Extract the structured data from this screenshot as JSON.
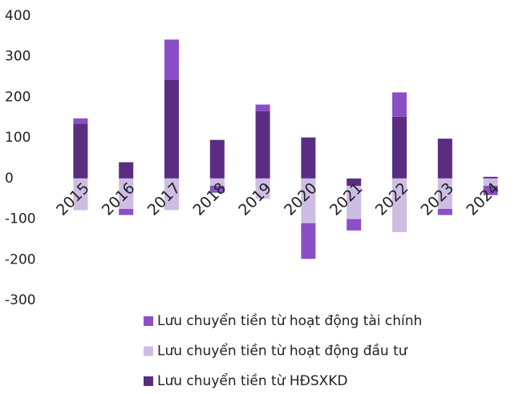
{
  "chart_data": {
    "type": "stacked_bar",
    "categories": [
      "2015",
      "2016",
      "2017",
      "2018",
      "2019",
      "2020",
      "2021",
      "2022",
      "2023",
      "2024"
    ],
    "series": [
      {
        "name": "Lưu chuyển tiền từ hoạt động tài chính",
        "color": "#8a4fc6",
        "values": [
          13,
          -15,
          99,
          -17,
          16,
          -88,
          -28,
          60,
          -15,
          -23
        ]
      },
      {
        "name": "Lưu chuyển tiền từ hoạt động đầu tư",
        "color": "#cdbde3",
        "values": [
          -78,
          -75,
          -78,
          -18,
          -50,
          -110,
          -82,
          -132,
          -75,
          -18
        ]
      },
      {
        "name": "Lưu chuyển tiền từ HĐSXKD",
        "color": "#5a2d82",
        "values": [
          135,
          40,
          243,
          95,
          166,
          101,
          -18,
          152,
          98,
          4
        ]
      }
    ],
    "ylim": [
      -300,
      400
    ],
    "yticks": [
      -300,
      -200,
      -100,
      0,
      100,
      200,
      300,
      400
    ]
  }
}
